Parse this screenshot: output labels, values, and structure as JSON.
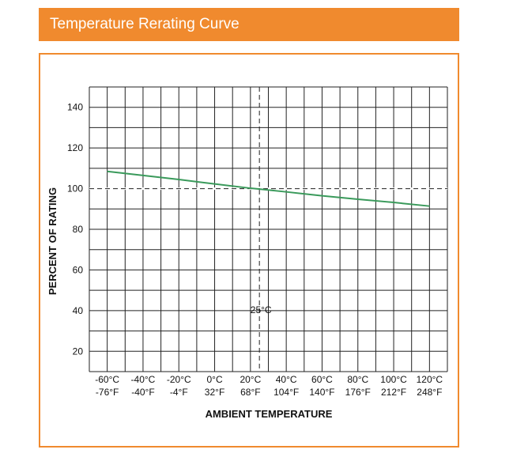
{
  "header": {
    "title": "Temperature Rerating Curve"
  },
  "colors": {
    "accent": "#f08a2e",
    "curve": "#3a9a5b",
    "grid": "#222222"
  },
  "chart_data": {
    "type": "line",
    "title": "",
    "xlabel": "AMBIENT TEMPERATURE",
    "ylabel": "PERCENT OF RATING",
    "x_unit": "°C",
    "xlim": [
      -60,
      120
    ],
    "ylim": [
      10,
      150
    ],
    "yticks": [
      20,
      40,
      60,
      80,
      100,
      120,
      140
    ],
    "xticks": [
      -60,
      -40,
      -20,
      0,
      20,
      40,
      60,
      80,
      100,
      120
    ],
    "xtick_labels_c": [
      "-60°C",
      "-40°C",
      "-20°C",
      "0°C",
      "20°C",
      "40°C",
      "60°C",
      "80°C",
      "100°C",
      "120°C"
    ],
    "xtick_labels_f": [
      "-76°F",
      "-40°F",
      "-4°F",
      "32°F",
      "68°F",
      "104°F",
      "140°F",
      "176°F",
      "212°F",
      "248°F"
    ],
    "grid": true,
    "reference_lines": {
      "x": 25,
      "y": 100,
      "x_label": "25°C"
    },
    "series": [
      {
        "x": [
          -60,
          -40,
          -20,
          0,
          20,
          25,
          40,
          60,
          80,
          100,
          120
        ],
        "y": [
          108.5,
          106.5,
          104.5,
          102.3,
          100.2,
          99.8,
          98.4,
          96.5,
          94.8,
          93.2,
          91.4
        ]
      }
    ]
  }
}
